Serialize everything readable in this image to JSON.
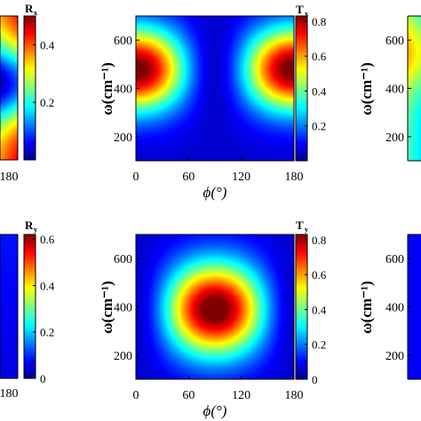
{
  "chart_data": [
    {
      "type": "heatmap",
      "panel": "top-left (cropped)",
      "colorbar_label": "R",
      "colorbar_label_sub": "x",
      "colorbar_ticks": [
        "0.2",
        "0.4"
      ],
      "colorbar_range": [
        0,
        0.5
      ],
      "x_ticks": [
        "180"
      ],
      "colormap": "jet"
    },
    {
      "type": "heatmap",
      "panel": "top-middle",
      "xlabel": "ϕ(°)",
      "ylabel": "ω(cm⁻¹)",
      "x_ticks": [
        "0",
        "60",
        "120",
        "180"
      ],
      "y_ticks": [
        "200",
        "400",
        "600"
      ],
      "xlim": [
        0,
        180
      ],
      "ylim": [
        100,
        700
      ],
      "colorbar_label": "T",
      "colorbar_label_sub": "x",
      "colorbar_ticks": [
        "0.2",
        "0.4",
        "0.6",
        "0.8"
      ],
      "colorbar_range": [
        0,
        0.83
      ],
      "colormap": "jet",
      "description_of_field": "high near phi=0 and phi=180 around omega~480, low near phi=90",
      "peak_value": 0.8
    },
    {
      "type": "heatmap",
      "panel": "top-right (cropped)",
      "ylabel": "ω(cm⁻¹)",
      "y_ticks": [
        "200",
        "400",
        "600"
      ],
      "colormap": "jet"
    },
    {
      "type": "heatmap",
      "panel": "bottom-left (cropped)",
      "colorbar_label": "R",
      "colorbar_label_sub": "y",
      "colorbar_ticks": [
        "0",
        "0.2",
        "0.4",
        "0.6"
      ],
      "colorbar_range": [
        0,
        0.62
      ],
      "x_ticks": [
        "180"
      ],
      "colormap": "jet"
    },
    {
      "type": "heatmap",
      "panel": "bottom-middle",
      "xlabel": "ϕ(°)",
      "ylabel": "ω(cm⁻¹)",
      "x_ticks": [
        "0",
        "60",
        "120",
        "180"
      ],
      "y_ticks": [
        "200",
        "400",
        "600"
      ],
      "xlim": [
        0,
        180
      ],
      "ylim": [
        100,
        700
      ],
      "colorbar_label": "T",
      "colorbar_label_sub": "y",
      "colorbar_ticks": [
        "0",
        "0.2",
        "0.4",
        "0.6",
        "0.8"
      ],
      "colorbar_range": [
        0,
        0.83
      ],
      "colormap": "jet",
      "peak_value": 0.8
    },
    {
      "type": "heatmap",
      "panel": "bottom-right (cropped)",
      "ylabel": "ω(cm⁻¹)",
      "y_ticks": [
        "200",
        "400",
        "600"
      ],
      "colormap": "jet"
    }
  ]
}
